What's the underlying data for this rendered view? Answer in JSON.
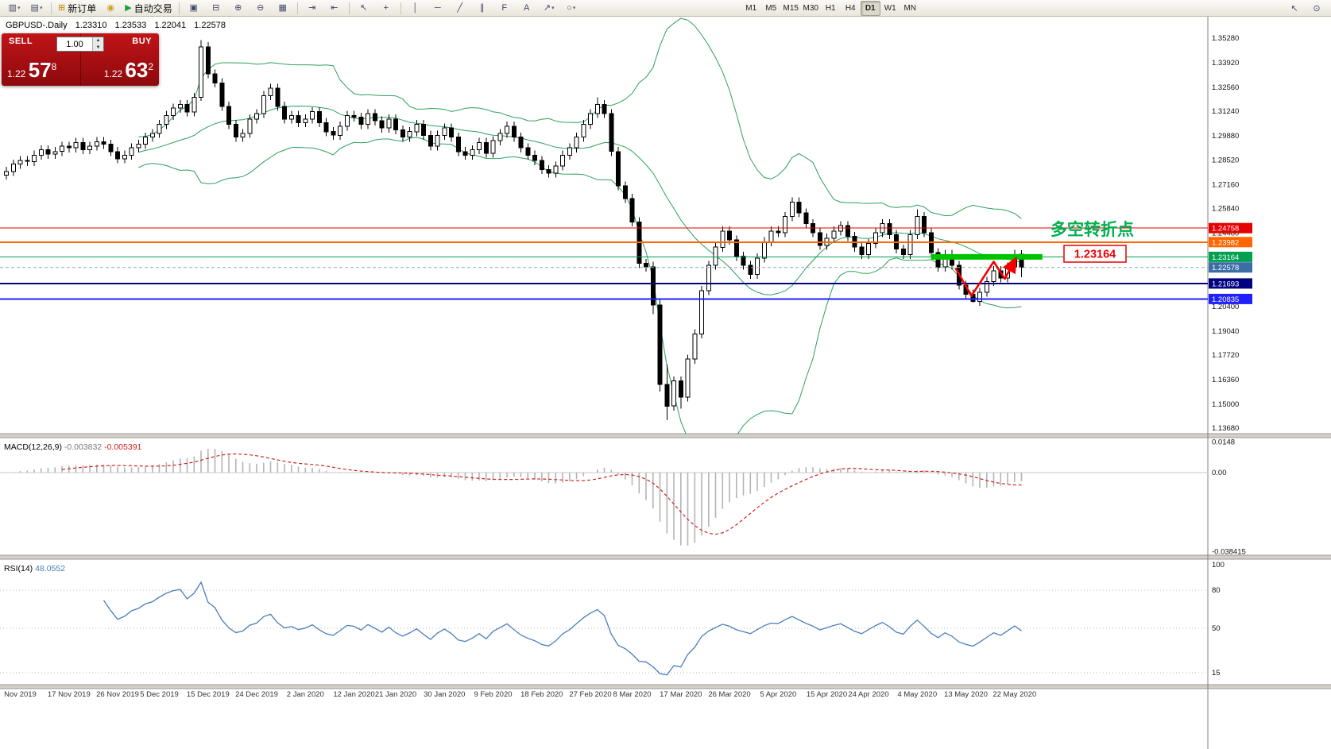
{
  "toolbar": {
    "caret_glyph": "▾",
    "groups": [
      {
        "items": [
          {
            "name": "new-chart-button",
            "glyph": "▥",
            "caret": true
          },
          {
            "name": "chart-profiles-button",
            "glyph": "▤",
            "caret": true
          }
        ]
      },
      {
        "items": [
          {
            "name": "new-order-button",
            "glyph": "⊞",
            "glyph_color": "#c8860a",
            "label": "新订单"
          },
          {
            "name": "mql5-community-button",
            "glyph": "◉",
            "glyph_color": "#d0a020"
          },
          {
            "name": "autotrading-button",
            "glyph": "▶",
            "glyph_color": "#1e9e40",
            "label": "自动交易"
          }
        ]
      },
      {
        "items": [
          {
            "name": "cascade-windows-button",
            "glyph": "▣"
          },
          {
            "name": "tile-windows-button",
            "glyph": "⊟"
          },
          {
            "name": "zoom-in-button",
            "glyph": "⊕"
          },
          {
            "name": "zoom-out-button",
            "glyph": "⊖"
          },
          {
            "name": "grid-button",
            "glyph": "▦"
          }
        ]
      },
      {
        "items": [
          {
            "name": "autoscroll-button",
            "glyph": "⇥"
          },
          {
            "name": "chart-shift-button",
            "glyph": "⇤"
          }
        ]
      },
      {
        "items": [
          {
            "name": "cursor-button",
            "glyph": "↖"
          },
          {
            "name": "crosshair-button",
            "glyph": "+"
          }
        ]
      },
      {
        "items": [
          {
            "name": "vertical-line-button",
            "glyph": "│"
          },
          {
            "name": "horizontal-line-button",
            "glyph": "─"
          },
          {
            "name": "trendline-button",
            "glyph": "╱"
          },
          {
            "name": "equidistant-channel-button",
            "glyph": "∥"
          },
          {
            "name": "fibonacci-button",
            "glyph": "F"
          },
          {
            "name": "text-button",
            "glyph": "A"
          },
          {
            "name": "arrows-button",
            "glyph": "↗",
            "caret": true
          },
          {
            "name": "shapes-button",
            "glyph": "○",
            "caret": true
          }
        ]
      }
    ],
    "timeframes": [
      {
        "label": "M1"
      },
      {
        "label": "M5"
      },
      {
        "label": "M15"
      },
      {
        "label": "M30"
      },
      {
        "label": "H1"
      },
      {
        "label": "H4"
      },
      {
        "label": "D1",
        "active": true
      },
      {
        "label": "W1"
      },
      {
        "label": "MN"
      }
    ],
    "right_items": [
      {
        "name": "pointer-tool-button",
        "glyph": "↖"
      },
      {
        "name": "magnifier-tool-button",
        "glyph": "⊙"
      }
    ]
  },
  "chart": {
    "symbol_header": "GBPUSD-.Daily",
    "ohlc": {
      "open": "1.23310",
      "high": "1.23533",
      "low": "1.22041",
      "close": "1.22578"
    },
    "hlines": [
      {
        "price": 1.24758,
        "color": "#e80000",
        "width": 1,
        "label": "1.24758"
      },
      {
        "price": 1.23982,
        "color": "#ff6600",
        "width": 2,
        "label": "1.23982"
      },
      {
        "price": 1.23164,
        "color": "#00a050",
        "width": 1,
        "label": "1.23164"
      },
      {
        "price": 1.21693,
        "color": "#000080",
        "width": 2,
        "label": "1.21693"
      },
      {
        "price": 1.20835,
        "color": "#2020ff",
        "width": 2,
        "label": "1.20835"
      }
    ],
    "current_price": {
      "value": 1.22578,
      "label": "1.22578",
      "color": "#3a6ea5"
    },
    "y_axis_labels": [
      "1.35280",
      "1.33920",
      "1.32560",
      "1.31240",
      "1.29880",
      "1.28520",
      "1.27160",
      "1.25840",
      "1.24480",
      "1.20400",
      "1.19040",
      "1.17720",
      "1.16360",
      "1.15000",
      "1.13680"
    ],
    "candle_colors": {
      "bull": "#ffffff",
      "bear": "#000000",
      "outline": "#000000"
    },
    "annotations": {
      "turning_point_text": "多空转折点",
      "turning_point_color": "#00b050",
      "price_box": {
        "text": "1.23164",
        "color": "#e80000"
      },
      "support_bar": {
        "price": 1.23164,
        "from_candle": 133,
        "to_candle": 149,
        "color": "#00c400",
        "thickness": 7
      },
      "zigzag": {
        "color": "#f20000",
        "points": [
          [
            136.5,
            1.2255
          ],
          [
            138.8,
            1.21
          ],
          [
            142.0,
            1.229
          ],
          [
            143.6,
            1.2195
          ],
          [
            145.2,
            1.231
          ]
        ]
      }
    }
  },
  "trade": {
    "sell_label": "SELL",
    "buy_label": "BUY",
    "volume": "1.00",
    "spinner_up": "▲",
    "spinner_down": "▼",
    "sell_price_small": "1.22",
    "sell_price_big": "57",
    "sell_price_point": "8",
    "buy_price_small": "1.22",
    "buy_price_big": "63",
    "buy_price_point": "2"
  },
  "macd_panel": {
    "label": "MACD(12,26,9)",
    "main_value_text": "-0.003832",
    "signal_value_text": "-0.005391",
    "axis_labels": [
      "0.0148",
      "0.00",
      "-0.038415"
    ]
  },
  "rsi_panel": {
    "label": "RSI(14)",
    "value_text": "48.0552",
    "axis_labels": [
      "100",
      "80",
      "50",
      "15"
    ]
  },
  "chart_data": {
    "type": "candlestick",
    "symbol": "GBPUSD",
    "timeframe": "Daily",
    "y_range": [
      1.1368,
      1.3528
    ],
    "x_labels": [
      "Nov 2019",
      "17 Nov 2019",
      "26 Nov 2019",
      "5 Dec 2019",
      "15 Dec 2019",
      "24 Dec 2019",
      "2 Jan 2020",
      "12 Jan 2020",
      "21 Jan 2020",
      "30 Jan 2020",
      "9 Feb 2020",
      "18 Feb 2020",
      "27 Feb 2020",
      "8 Mar 2020",
      "17 Mar 2020",
      "26 Mar 2020",
      "5 Apr 2020",
      "15 Apr 2020",
      "24 Apr 2020",
      "4 May 2020",
      "13 May 2020",
      "22 May 2020"
    ],
    "indicators": {
      "bollinger": {
        "period": 20,
        "deviation": 2,
        "color": "#2ca05a"
      },
      "macd": {
        "fast": 12,
        "slow": 26,
        "signal": 9,
        "main_value": -0.003832,
        "signal_value": -0.005391,
        "histogram_color": "#b4b4b4",
        "signal_color": "#d02020",
        "y_range": [
          -0.038415,
          0.0148
        ]
      },
      "rsi": {
        "period": 14,
        "value": 48.0552,
        "color": "#4a7ebb",
        "levels": [
          80,
          50,
          15
        ],
        "y_range": [
          0,
          100
        ]
      }
    },
    "candles": [
      [
        1.277,
        1.2815,
        1.2745,
        1.279
      ],
      [
        1.279,
        1.2855,
        1.2765,
        1.283
      ],
      [
        1.283,
        1.2875,
        1.2805,
        1.285
      ],
      [
        1.285,
        1.2875,
        1.282,
        1.2845
      ],
      [
        1.2845,
        1.2905,
        1.282,
        1.288
      ],
      [
        1.288,
        1.2935,
        1.2855,
        1.291
      ],
      [
        1.291,
        1.2935,
        1.286,
        1.2885
      ],
      [
        1.2885,
        1.2925,
        1.286,
        1.29
      ],
      [
        1.29,
        1.2955,
        1.2875,
        1.293
      ],
      [
        1.293,
        1.2955,
        1.2895,
        1.292
      ],
      [
        1.292,
        1.2975,
        1.2895,
        1.295
      ],
      [
        1.295,
        1.2975,
        1.2885,
        1.291
      ],
      [
        1.291,
        1.2955,
        1.2885,
        1.293
      ],
      [
        1.293,
        1.298,
        1.2905,
        1.2955
      ],
      [
        1.2955,
        1.298,
        1.2915,
        1.294
      ],
      [
        1.294,
        1.2965,
        1.2875,
        1.29
      ],
      [
        1.29,
        1.2925,
        1.2835,
        1.286
      ],
      [
        1.286,
        1.2905,
        1.2835,
        1.288
      ],
      [
        1.288,
        1.2945,
        1.2855,
        1.292
      ],
      [
        1.292,
        1.2965,
        1.2895,
        1.294
      ],
      [
        1.294,
        1.3005,
        1.2915,
        1.298
      ],
      [
        1.298,
        1.3025,
        1.2955,
        1.3
      ],
      [
        1.3,
        1.3075,
        1.2975,
        1.305
      ],
      [
        1.305,
        1.3125,
        1.3025,
        1.31
      ],
      [
        1.31,
        1.3165,
        1.3075,
        1.314
      ],
      [
        1.314,
        1.3185,
        1.3115,
        1.316
      ],
      [
        1.316,
        1.3185,
        1.3095,
        1.312
      ],
      [
        1.312,
        1.3225,
        1.3095,
        1.32
      ],
      [
        1.32,
        1.3516,
        1.318,
        1.348
      ],
      [
        1.348,
        1.3505,
        1.3305,
        1.333
      ],
      [
        1.333,
        1.3355,
        1.3255,
        1.328
      ],
      [
        1.328,
        1.3305,
        1.3125,
        1.315
      ],
      [
        1.315,
        1.3175,
        1.3025,
        1.305
      ],
      [
        1.305,
        1.3075,
        1.2955,
        1.298
      ],
      [
        1.298,
        1.3025,
        1.2955,
        1.3
      ],
      [
        1.3,
        1.3105,
        1.2975,
        1.308
      ],
      [
        1.308,
        1.3135,
        1.3055,
        1.311
      ],
      [
        1.311,
        1.3235,
        1.3085,
        1.321
      ],
      [
        1.321,
        1.3275,
        1.3185,
        1.325
      ],
      [
        1.325,
        1.3275,
        1.3125,
        1.315
      ],
      [
        1.315,
        1.3175,
        1.3055,
        1.308
      ],
      [
        1.308,
        1.3125,
        1.3055,
        1.31
      ],
      [
        1.31,
        1.3125,
        1.3035,
        1.306
      ],
      [
        1.306,
        1.3105,
        1.3035,
        1.308
      ],
      [
        1.308,
        1.3145,
        1.3055,
        1.312
      ],
      [
        1.312,
        1.3145,
        1.3035,
        1.306
      ],
      [
        1.306,
        1.3085,
        1.2985,
        1.301
      ],
      [
        1.301,
        1.3035,
        1.2965,
        1.299
      ],
      [
        1.299,
        1.3065,
        1.2965,
        1.304
      ],
      [
        1.304,
        1.3125,
        1.3015,
        1.31
      ],
      [
        1.31,
        1.3125,
        1.3065,
        1.309
      ],
      [
        1.309,
        1.3115,
        1.3025,
        1.305
      ],
      [
        1.305,
        1.3135,
        1.3025,
        1.311
      ],
      [
        1.311,
        1.3135,
        1.3045,
        1.307
      ],
      [
        1.307,
        1.3095,
        1.3005,
        1.303
      ],
      [
        1.303,
        1.3105,
        1.3005,
        1.308
      ],
      [
        1.308,
        1.3105,
        1.2995,
        1.302
      ],
      [
        1.302,
        1.3045,
        1.2955,
        1.298
      ],
      [
        1.298,
        1.3035,
        1.2955,
        1.301
      ],
      [
        1.301,
        1.3075,
        1.2985,
        1.305
      ],
      [
        1.305,
        1.3075,
        1.2965,
        1.299
      ],
      [
        1.299,
        1.3015,
        1.2905,
        1.293
      ],
      [
        1.293,
        1.3015,
        1.2905,
        1.299
      ],
      [
        1.299,
        1.3055,
        1.2965,
        1.303
      ],
      [
        1.303,
        1.3055,
        1.2955,
        1.298
      ],
      [
        1.298,
        1.3005,
        1.2875,
        1.29
      ],
      [
        1.29,
        1.2925,
        1.2855,
        1.288
      ],
      [
        1.288,
        1.2935,
        1.2855,
        1.291
      ],
      [
        1.291,
        1.2975,
        1.2885,
        1.295
      ],
      [
        1.295,
        1.2975,
        1.2865,
        1.289
      ],
      [
        1.289,
        1.2985,
        1.2865,
        1.296
      ],
      [
        1.296,
        1.3025,
        1.2935,
        1.3
      ],
      [
        1.3,
        1.3065,
        1.2975,
        1.304
      ],
      [
        1.304,
        1.3065,
        1.2955,
        1.298
      ],
      [
        1.298,
        1.3005,
        1.2895,
        1.292
      ],
      [
        1.292,
        1.2945,
        1.2855,
        1.288
      ],
      [
        1.288,
        1.2905,
        1.2825,
        1.285
      ],
      [
        1.285,
        1.2875,
        1.2775,
        1.28
      ],
      [
        1.28,
        1.2825,
        1.2755,
        1.278
      ],
      [
        1.278,
        1.2845,
        1.2755,
        1.282
      ],
      [
        1.282,
        1.2905,
        1.2795,
        1.288
      ],
      [
        1.288,
        1.2945,
        1.2855,
        1.292
      ],
      [
        1.292,
        1.3005,
        1.2895,
        1.298
      ],
      [
        1.298,
        1.3075,
        1.2955,
        1.305
      ],
      [
        1.305,
        1.3135,
        1.3025,
        1.311
      ],
      [
        1.311,
        1.32,
        1.3085,
        1.316
      ],
      [
        1.316,
        1.3185,
        1.3085,
        1.311
      ],
      [
        1.311,
        1.3135,
        1.2875,
        1.29
      ],
      [
        1.29,
        1.2925,
        1.2685,
        1.271
      ],
      [
        1.271,
        1.2735,
        1.2615,
        1.264
      ],
      [
        1.264,
        1.2665,
        1.2485,
        1.251
      ],
      [
        1.251,
        1.2535,
        1.2255,
        1.228
      ],
      [
        1.228,
        1.2305,
        1.2235,
        1.226
      ],
      [
        1.226,
        1.229,
        1.2,
        1.205
      ],
      [
        1.205,
        1.208,
        1.157,
        1.161
      ],
      [
        1.161,
        1.172,
        1.1412,
        1.149
      ],
      [
        1.149,
        1.1655,
        1.1465,
        1.163
      ],
      [
        1.163,
        1.1655,
        1.1475,
        1.154
      ],
      [
        1.154,
        1.1775,
        1.1515,
        1.175
      ],
      [
        1.175,
        1.1915,
        1.1725,
        1.189
      ],
      [
        1.189,
        1.2155,
        1.1865,
        1.213
      ],
      [
        1.213,
        1.2295,
        1.2105,
        1.227
      ],
      [
        1.227,
        1.2395,
        1.2245,
        1.237
      ],
      [
        1.237,
        1.2485,
        1.2345,
        1.246
      ],
      [
        1.246,
        1.2485,
        1.2385,
        1.241
      ],
      [
        1.241,
        1.2435,
        1.2295,
        1.232
      ],
      [
        1.232,
        1.2345,
        1.2245,
        1.227
      ],
      [
        1.227,
        1.2295,
        1.2195,
        1.222
      ],
      [
        1.222,
        1.2335,
        1.2195,
        1.231
      ],
      [
        1.231,
        1.2425,
        1.2285,
        1.24
      ],
      [
        1.24,
        1.2485,
        1.2375,
        1.246
      ],
      [
        1.246,
        1.2485,
        1.2425,
        1.245
      ],
      [
        1.245,
        1.2565,
        1.2425,
        1.254
      ],
      [
        1.254,
        1.2645,
        1.2515,
        1.262
      ],
      [
        1.262,
        1.2645,
        1.2535,
        1.256
      ],
      [
        1.256,
        1.2585,
        1.2475,
        1.25
      ],
      [
        1.25,
        1.2525,
        1.2425,
        1.245
      ],
      [
        1.245,
        1.2475,
        1.2355,
        1.238
      ],
      [
        1.238,
        1.2445,
        1.2355,
        1.242
      ],
      [
        1.242,
        1.2485,
        1.2395,
        1.246
      ],
      [
        1.246,
        1.2515,
        1.2435,
        1.249
      ],
      [
        1.249,
        1.2515,
        1.2405,
        1.243
      ],
      [
        1.243,
        1.2455,
        1.2345,
        1.237
      ],
      [
        1.237,
        1.2395,
        1.2305,
        1.233
      ],
      [
        1.233,
        1.2415,
        1.2305,
        1.239
      ],
      [
        1.239,
        1.2475,
        1.2365,
        1.245
      ],
      [
        1.245,
        1.2525,
        1.2425,
        1.25
      ],
      [
        1.25,
        1.2525,
        1.2415,
        1.244
      ],
      [
        1.244,
        1.2465,
        1.2335,
        1.236
      ],
      [
        1.236,
        1.2385,
        1.2305,
        1.233
      ],
      [
        1.233,
        1.2465,
        1.2305,
        1.244
      ],
      [
        1.244,
        1.258,
        1.2415,
        1.254
      ],
      [
        1.254,
        1.2565,
        1.2425,
        1.245
      ],
      [
        1.245,
        1.2475,
        1.2315,
        1.234
      ],
      [
        1.234,
        1.2365,
        1.2235,
        1.226
      ],
      [
        1.226,
        1.2355,
        1.2235,
        1.233
      ],
      [
        1.233,
        1.2355,
        1.2245,
        1.227
      ],
      [
        1.227,
        1.2295,
        1.2135,
        1.216
      ],
      [
        1.216,
        1.2185,
        1.2085,
        1.211
      ],
      [
        1.211,
        1.2135,
        1.2062,
        1.207
      ],
      [
        1.207,
        1.2145,
        1.2045,
        1.212
      ],
      [
        1.212,
        1.2205,
        1.2095,
        1.218
      ],
      [
        1.218,
        1.2265,
        1.2155,
        1.224
      ],
      [
        1.224,
        1.2265,
        1.2175,
        1.22
      ],
      [
        1.22,
        1.2285,
        1.2175,
        1.226
      ],
      [
        1.226,
        1.2355,
        1.2235,
        1.233
      ],
      [
        1.2331,
        1.23533,
        1.22041,
        1.22578
      ]
    ]
  }
}
